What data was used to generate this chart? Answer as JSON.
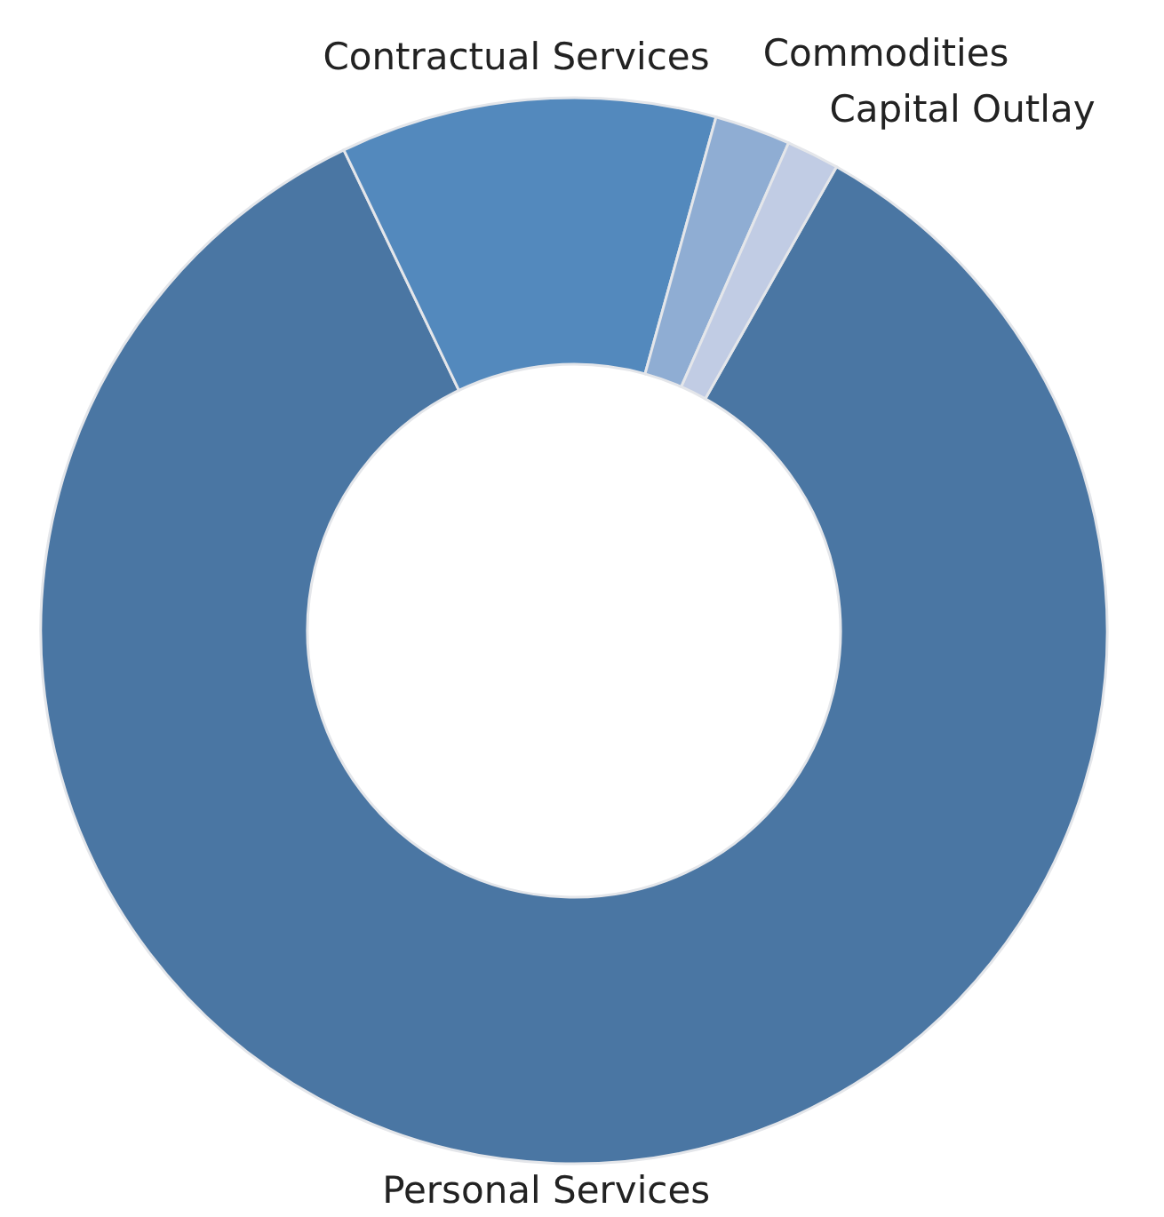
{
  "chart_data": {
    "type": "donut",
    "categories": [
      "Personal Services",
      "Contractual Services",
      "Commodities",
      "Capital Outlay"
    ],
    "values": [
      84.7,
      11.4,
      2.3,
      1.6
    ],
    "colors": [
      "#4a76a3",
      "#5389bd",
      "#8fadd3",
      "#c1cce4"
    ]
  }
}
